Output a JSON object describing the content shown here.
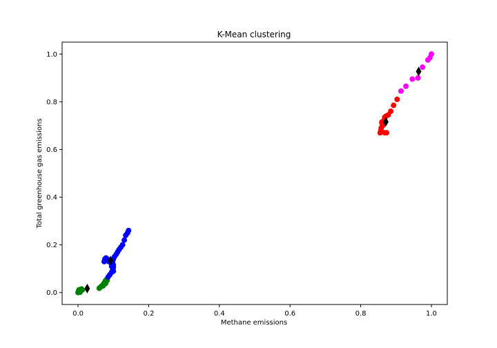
{
  "chart_data": {
    "type": "scatter",
    "title": "K-Mean clustering",
    "xlabel": "Methane emissions",
    "ylabel": "Total greenhouse gas emissions",
    "xlim": [
      -0.045,
      1.045
    ],
    "ylim": [
      -0.05,
      1.05
    ],
    "xticks": [
      0.0,
      0.2,
      0.4,
      0.6,
      0.8,
      1.0
    ],
    "yticks": [
      0.0,
      0.2,
      0.4,
      0.6,
      0.8,
      1.0
    ],
    "xtick_labels": [
      "0.0",
      "0.2",
      "0.4",
      "0.6",
      "0.8",
      "1.0"
    ],
    "ytick_labels": [
      "0.0",
      "0.2",
      "0.4",
      "0.6",
      "0.8",
      "1.0"
    ],
    "grid": false,
    "legend": "none",
    "series": [
      {
        "color": "#008000",
        "points": [
          [
            0.0,
            0.0
          ],
          [
            0.001,
            0.004
          ],
          [
            0.002,
            0.008
          ],
          [
            0.003,
            0.012
          ],
          [
            0.005,
            0.009
          ],
          [
            0.006,
            0.002
          ],
          [
            0.008,
            0.013
          ],
          [
            0.01,
            0.015
          ],
          [
            0.012,
            0.011
          ],
          [
            0.003,
            0.006
          ],
          [
            0.007,
            0.007
          ],
          [
            0.06,
            0.018
          ],
          [
            0.063,
            0.022
          ],
          [
            0.066,
            0.026
          ],
          [
            0.069,
            0.03
          ],
          [
            0.072,
            0.034
          ],
          [
            0.074,
            0.04
          ],
          [
            0.076,
            0.045
          ],
          [
            0.078,
            0.05
          ],
          [
            0.08,
            0.054
          ],
          [
            0.082,
            0.05
          ],
          [
            0.078,
            0.038
          ],
          [
            0.071,
            0.028
          ]
        ]
      },
      {
        "color": "#0000ff",
        "points": [
          [
            0.085,
            0.065
          ],
          [
            0.09,
            0.075
          ],
          [
            0.095,
            0.085
          ],
          [
            0.098,
            0.095
          ],
          [
            0.1,
            0.105
          ],
          [
            0.1,
            0.115
          ],
          [
            0.098,
            0.125
          ],
          [
            0.095,
            0.135
          ],
          [
            0.1,
            0.14
          ],
          [
            0.103,
            0.15
          ],
          [
            0.108,
            0.16
          ],
          [
            0.112,
            0.17
          ],
          [
            0.116,
            0.18
          ],
          [
            0.121,
            0.19
          ],
          [
            0.126,
            0.2
          ],
          [
            0.131,
            0.22
          ],
          [
            0.135,
            0.24
          ],
          [
            0.14,
            0.25
          ],
          [
            0.143,
            0.26
          ],
          [
            0.074,
            0.13
          ],
          [
            0.076,
            0.14
          ],
          [
            0.079,
            0.145
          ],
          [
            0.083,
            0.14
          ],
          [
            0.087,
            0.13
          ],
          [
            0.093,
            0.125
          ],
          [
            0.1,
            0.09
          ],
          [
            0.095,
            0.11
          ]
        ]
      },
      {
        "color": "#ff0000",
        "points": [
          [
            0.855,
            0.67
          ],
          [
            0.857,
            0.68
          ],
          [
            0.858,
            0.69
          ],
          [
            0.86,
            0.71
          ],
          [
            0.862,
            0.7
          ],
          [
            0.865,
            0.72
          ],
          [
            0.868,
            0.735
          ],
          [
            0.872,
            0.74
          ],
          [
            0.878,
            0.745
          ],
          [
            0.885,
            0.76
          ],
          [
            0.893,
            0.785
          ],
          [
            0.903,
            0.81
          ],
          [
            0.868,
            0.67
          ],
          [
            0.873,
            0.67
          ],
          [
            0.86,
            0.715
          ]
        ]
      },
      {
        "color": "#ff00ff",
        "points": [
          [
            0.914,
            0.845
          ],
          [
            0.928,
            0.865
          ],
          [
            0.946,
            0.895
          ],
          [
            0.962,
            0.9
          ],
          [
            0.975,
            0.945
          ],
          [
            0.99,
            0.975
          ],
          [
            0.996,
            0.985
          ],
          [
            1.0,
            1.0
          ]
        ]
      }
    ],
    "centroids": [
      [
        0.026,
        0.017
      ],
      [
        0.092,
        0.134
      ],
      [
        0.871,
        0.716
      ],
      [
        0.964,
        0.927
      ]
    ],
    "centroid_color": "#000000"
  }
}
